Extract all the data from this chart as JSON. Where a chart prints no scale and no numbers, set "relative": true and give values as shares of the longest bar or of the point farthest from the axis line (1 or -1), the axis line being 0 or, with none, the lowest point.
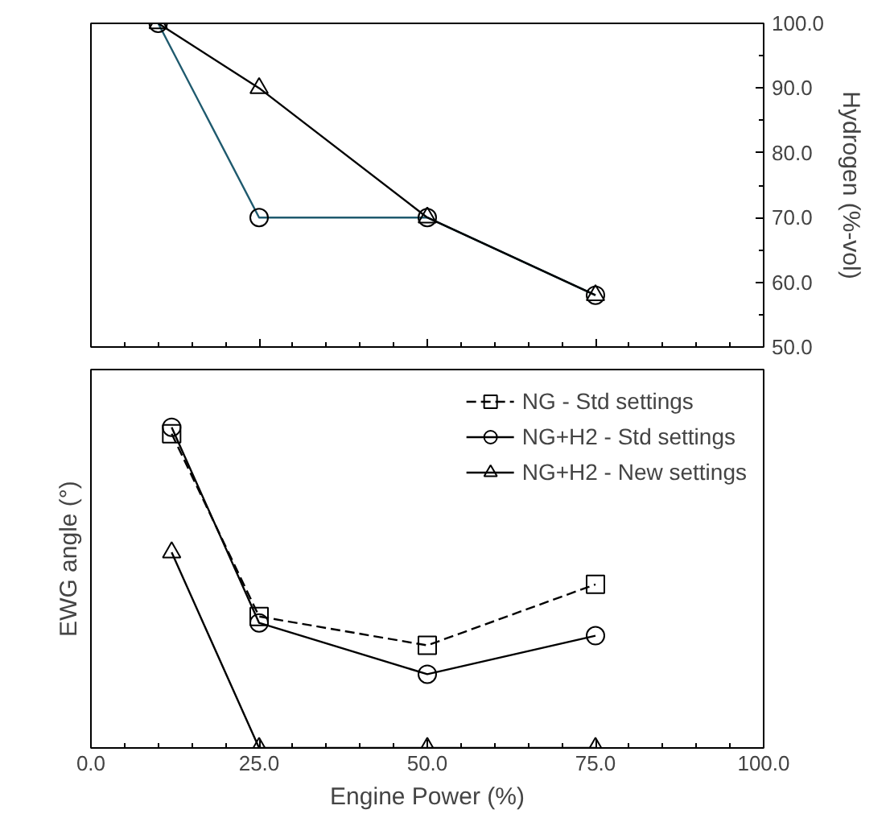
{
  "chart_data": [
    {
      "type": "line",
      "ylabel": "Hydrogen (%-vol)",
      "xlim": [
        0,
        100
      ],
      "xticks": [
        {
          "value": 0,
          "label": null
        },
        {
          "value": 25,
          "label": null
        },
        {
          "value": 50,
          "label": null
        },
        {
          "value": 75,
          "label": null
        },
        {
          "value": 100,
          "label": null
        }
      ],
      "ylim": [
        50,
        100
      ],
      "yticks": [
        {
          "value": 50,
          "label": "50.0"
        },
        {
          "value": 60,
          "label": "60.0"
        },
        {
          "value": 70,
          "label": "70.0"
        },
        {
          "value": 80,
          "label": "80.0"
        },
        {
          "value": 90,
          "label": "90.0"
        },
        {
          "value": 100,
          "label": "100.0"
        }
      ],
      "tick_labels": "y",
      "grid": false,
      "legend": false,
      "x": [
        10,
        25,
        50,
        75
      ],
      "series": [
        {
          "color": "#1f5a6e",
          "marker": "circle",
          "values": [
            100,
            70,
            70,
            58
          ]
        },
        {
          "color": "#000000",
          "marker": "triangle",
          "values": [
            100,
            90,
            70,
            58
          ]
        }
      ]
    },
    {
      "type": "line",
      "xlabel": "Engine Power (%)",
      "ylabel": "EWG angle (°)",
      "relative": true,
      "xlim": [
        0,
        100
      ],
      "xticks": [
        {
          "value": 0,
          "label": "0.0"
        },
        {
          "value": 25,
          "label": "25.0"
        },
        {
          "value": 50,
          "label": "50.0"
        },
        {
          "value": 75,
          "label": "75.0"
        },
        {
          "value": 100,
          "label": "100.0"
        }
      ],
      "tick_labels": "x",
      "grid": false,
      "legend": "top right",
      "x": [
        12,
        25,
        50,
        75
      ],
      "series": [
        {
          "name": "NG - Std settings",
          "color": "#000000",
          "marker": "square",
          "line_style": "dashed",
          "values": [
            0.98,
            0.41,
            0.32,
            0.51
          ]
        },
        {
          "name": "NG+H2 - Std settings",
          "color": "#000000",
          "marker": "circle",
          "values": [
            1,
            0.39,
            0.23,
            0.35
          ]
        },
        {
          "name": "NG+H2 - New settings",
          "color": "#000000",
          "marker": "triangle",
          "values": [
            0.61,
            0,
            0,
            0
          ]
        }
      ]
    }
  ]
}
